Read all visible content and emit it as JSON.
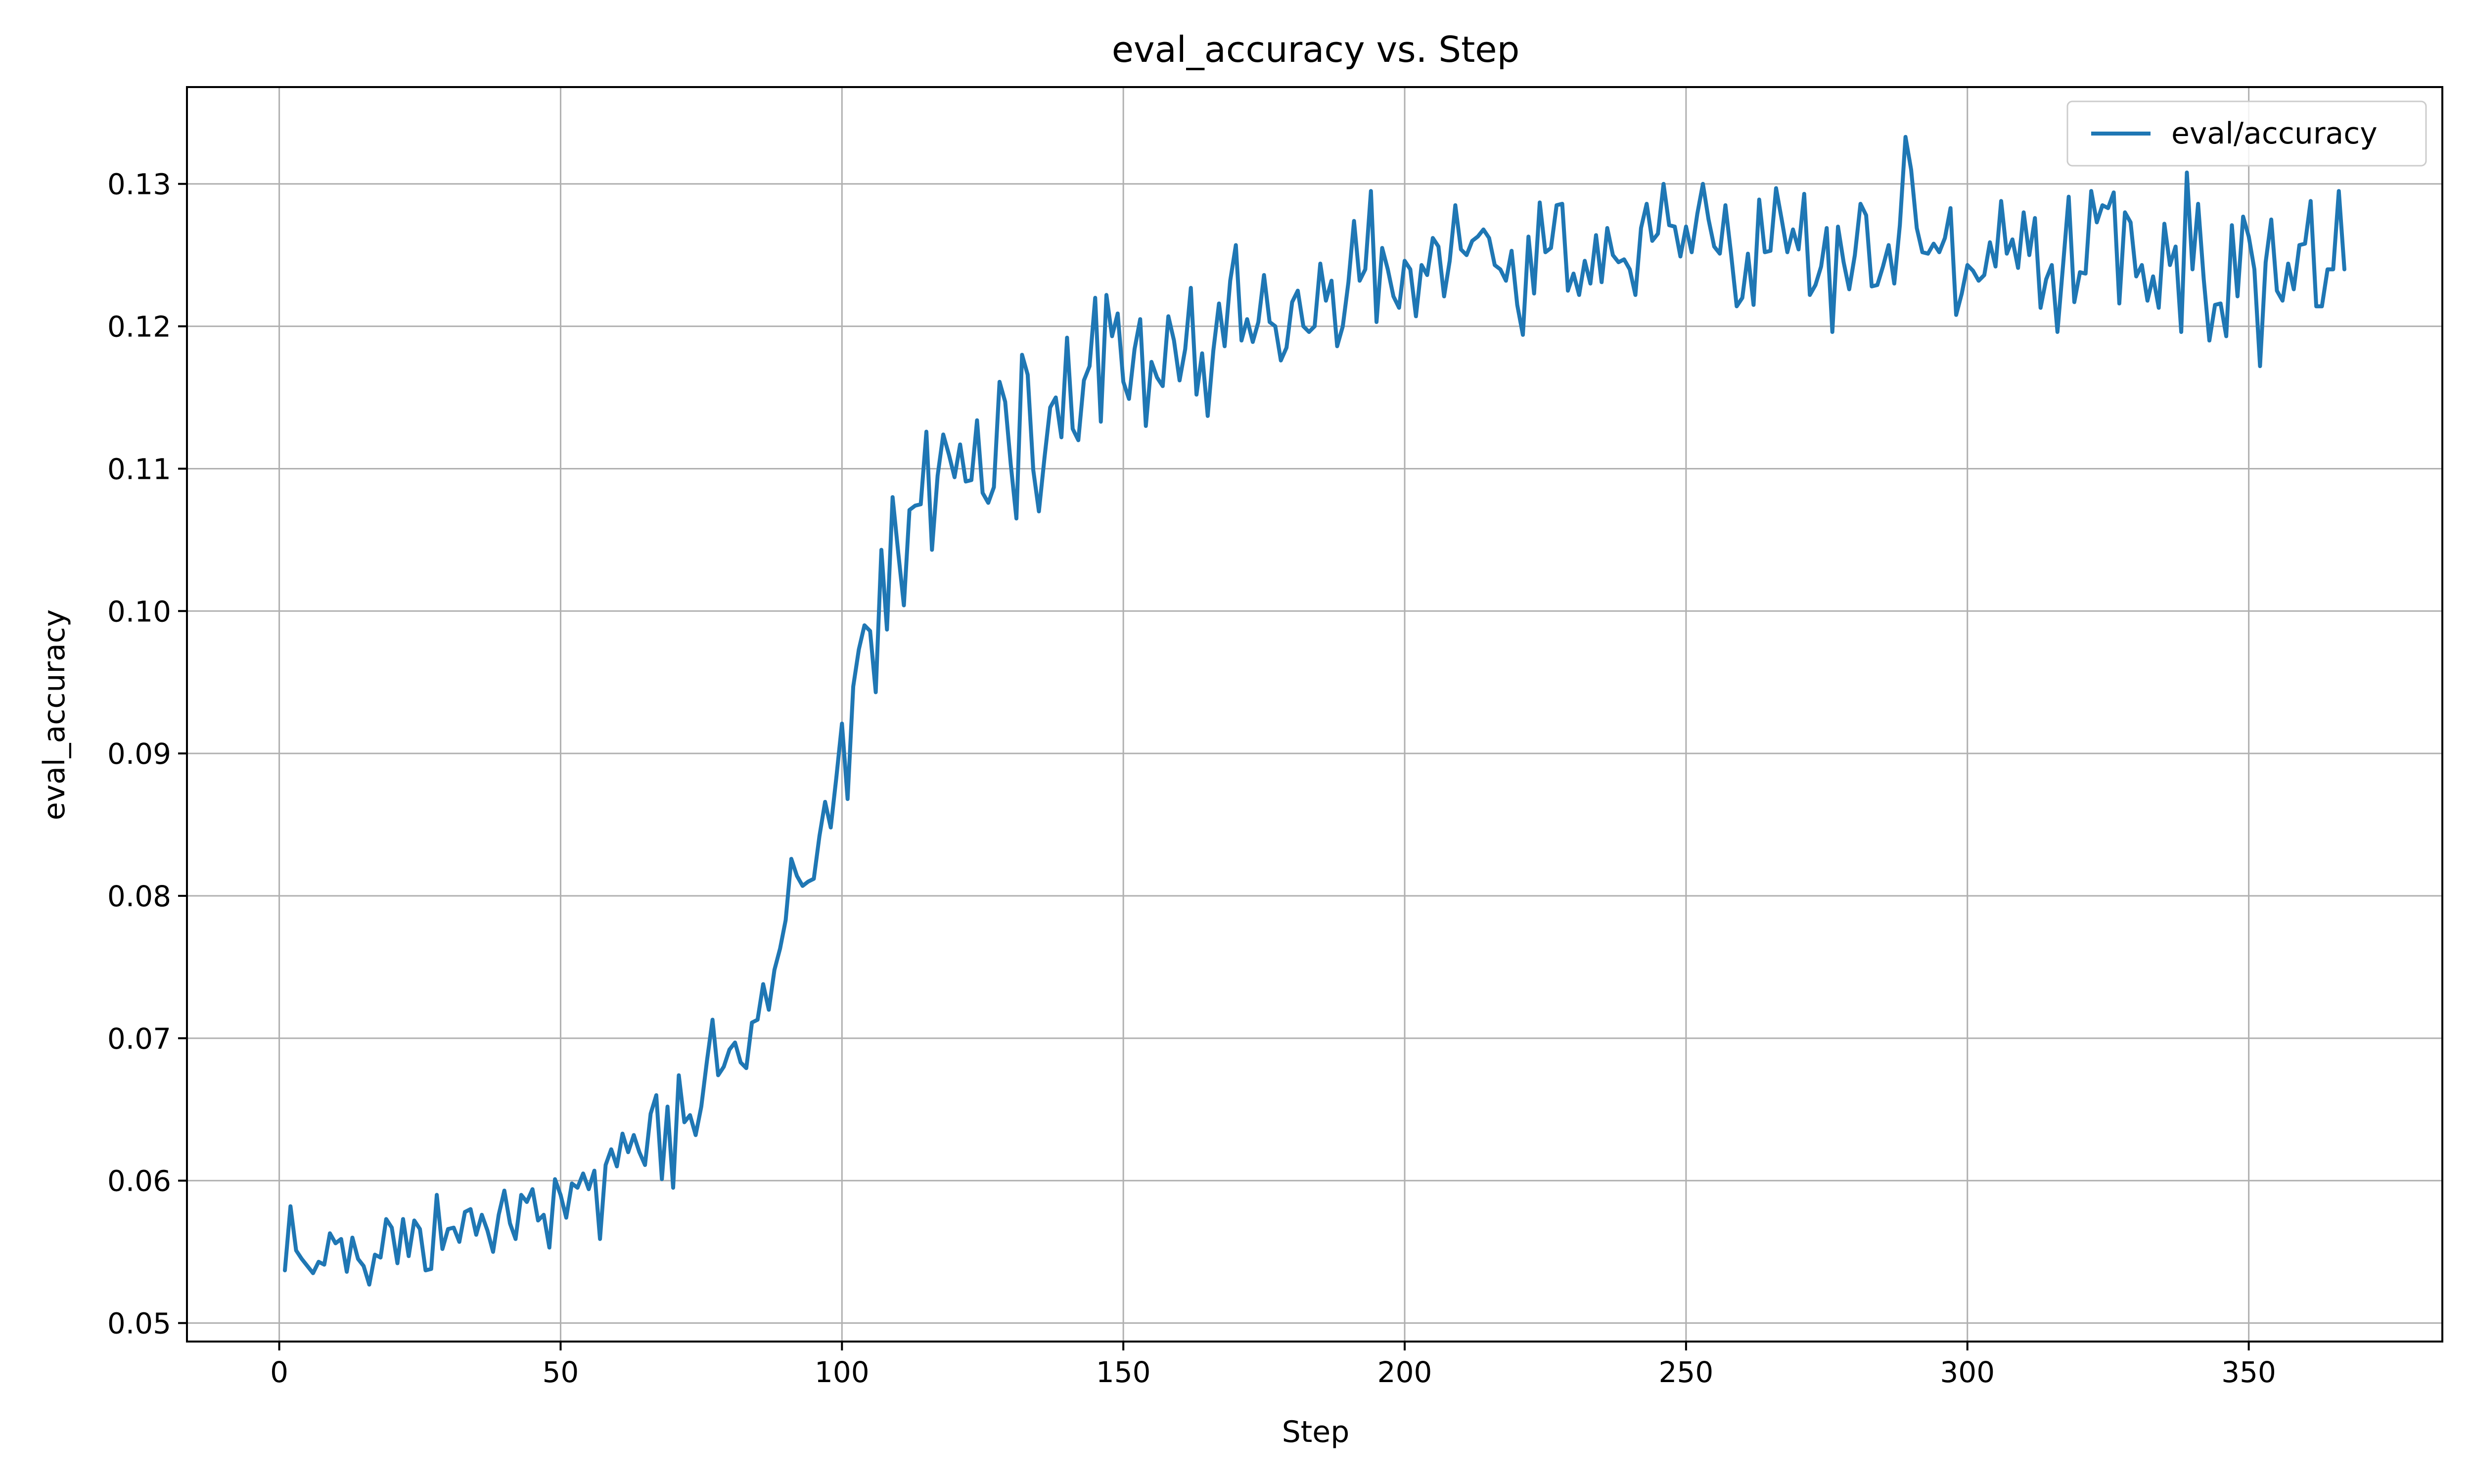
{
  "chart_data": {
    "type": "line",
    "title": "eval_accuracy vs. Step",
    "xlabel": "Step",
    "ylabel": "eval_accuracy",
    "xlim": [
      -16.4,
      384.4
    ],
    "ylim": [
      0.0487,
      0.1368
    ],
    "xticks": [
      0,
      50,
      100,
      150,
      200,
      250,
      300,
      350
    ],
    "yticks": [
      0.05,
      0.06,
      0.07,
      0.08,
      0.09,
      0.1,
      0.11,
      0.12,
      0.13
    ],
    "xtick_labels": [
      "0",
      "50",
      "100",
      "150",
      "200",
      "250",
      "300",
      "350"
    ],
    "ytick_labels": [
      "0.05",
      "0.06",
      "0.07",
      "0.08",
      "0.09",
      "0.10",
      "0.11",
      "0.12",
      "0.13"
    ],
    "grid": true,
    "legend_position": "top-right",
    "series": [
      {
        "name": "eval/accuracy",
        "color": "#1f77b4",
        "x_start": 1,
        "x_step": 1,
        "values": [
          0.0537,
          0.0582,
          0.0551,
          0.0545,
          0.054,
          0.0535,
          0.0543,
          0.0541,
          0.0563,
          0.0556,
          0.0559,
          0.0536,
          0.056,
          0.0545,
          0.054,
          0.0527,
          0.0548,
          0.0546,
          0.0573,
          0.0567,
          0.0542,
          0.0573,
          0.0547,
          0.0572,
          0.0566,
          0.0537,
          0.0538,
          0.059,
          0.0552,
          0.0566,
          0.0567,
          0.0557,
          0.0578,
          0.058,
          0.0562,
          0.0576,
          0.0565,
          0.055,
          0.0576,
          0.0593,
          0.057,
          0.0559,
          0.059,
          0.0585,
          0.0594,
          0.0572,
          0.0576,
          0.0553,
          0.0601,
          0.059,
          0.0574,
          0.0598,
          0.0595,
          0.0605,
          0.0594,
          0.0607,
          0.0559,
          0.0611,
          0.0622,
          0.061,
          0.0633,
          0.062,
          0.0632,
          0.062,
          0.0611,
          0.0647,
          0.066,
          0.0601,
          0.0652,
          0.0595,
          0.0674,
          0.0641,
          0.0646,
          0.0632,
          0.0652,
          0.0684,
          0.0713,
          0.0674,
          0.068,
          0.0692,
          0.0697,
          0.0683,
          0.0679,
          0.0711,
          0.0713,
          0.0738,
          0.072,
          0.0748,
          0.0763,
          0.0783,
          0.0826,
          0.0814,
          0.0807,
          0.081,
          0.0812,
          0.0842,
          0.0866,
          0.0848,
          0.0883,
          0.0921,
          0.0868,
          0.0947,
          0.0973,
          0.099,
          0.0986,
          0.0943,
          0.1043,
          0.0987,
          0.108,
          0.1041,
          0.1004,
          0.1071,
          0.1074,
          0.1075,
          0.1126,
          0.1043,
          0.1095,
          0.1124,
          0.111,
          0.1094,
          0.1117,
          0.1091,
          0.1092,
          0.1134,
          0.1083,
          0.1076,
          0.1087,
          0.1161,
          0.1147,
          0.1103,
          0.1065,
          0.118,
          0.1166,
          0.1099,
          0.107,
          0.1108,
          0.1143,
          0.115,
          0.1122,
          0.1192,
          0.1128,
          0.112,
          0.1162,
          0.1172,
          0.122,
          0.1133,
          0.1222,
          0.1193,
          0.1209,
          0.1161,
          0.1149,
          0.1184,
          0.1205,
          0.113,
          0.1175,
          0.1164,
          0.1158,
          0.1207,
          0.119,
          0.1162,
          0.1184,
          0.1227,
          0.1152,
          0.1181,
          0.1137,
          0.1183,
          0.1216,
          0.1186,
          0.1232,
          0.1257,
          0.119,
          0.1205,
          0.1189,
          0.1203,
          0.1236,
          0.1203,
          0.12,
          0.1176,
          0.1185,
          0.1217,
          0.1225,
          0.12,
          0.1196,
          0.12,
          0.1244,
          0.1218,
          0.1232,
          0.1186,
          0.12,
          0.1231,
          0.1274,
          0.1232,
          0.124,
          0.1295,
          0.1203,
          0.1255,
          0.124,
          0.1221,
          0.1213,
          0.1246,
          0.124,
          0.1207,
          0.1243,
          0.1236,
          0.1262,
          0.1256,
          0.1221,
          0.1246,
          0.1285,
          0.1254,
          0.125,
          0.126,
          0.1263,
          0.1268,
          0.1262,
          0.1243,
          0.124,
          0.1232,
          0.1253,
          0.1215,
          0.1194,
          0.1263,
          0.1223,
          0.1287,
          0.1252,
          0.1255,
          0.1285,
          0.1286,
          0.1225,
          0.1237,
          0.1222,
          0.1246,
          0.123,
          0.1264,
          0.1231,
          0.1269,
          0.125,
          0.1245,
          0.1247,
          0.124,
          0.1222,
          0.1269,
          0.1286,
          0.126,
          0.1265,
          0.13,
          0.1271,
          0.127,
          0.1249,
          0.127,
          0.1252,
          0.1279,
          0.13,
          0.1275,
          0.1256,
          0.1251,
          0.1285,
          0.1251,
          0.1214,
          0.122,
          0.1251,
          0.1215,
          0.1289,
          0.1252,
          0.1253,
          0.1297,
          0.1275,
          0.1252,
          0.1268,
          0.1254,
          0.1293,
          0.1222,
          0.1229,
          0.1242,
          0.1269,
          0.1196,
          0.127,
          0.1245,
          0.1226,
          0.125,
          0.1286,
          0.1278,
          0.1228,
          0.1229,
          0.1242,
          0.1257,
          0.123,
          0.1271,
          0.1333,
          0.131,
          0.1269,
          0.1252,
          0.1251,
          0.1258,
          0.1252,
          0.1262,
          0.1283,
          0.1208,
          0.1223,
          0.1243,
          0.1239,
          0.1232,
          0.1236,
          0.1259,
          0.1242,
          0.1288,
          0.1251,
          0.1261,
          0.1241,
          0.128,
          0.125,
          0.1276,
          0.1213,
          0.1233,
          0.1243,
          0.1196,
          0.1243,
          0.1291,
          0.1217,
          0.1238,
          0.1237,
          0.1295,
          0.1273,
          0.1285,
          0.1283,
          0.1294,
          0.1216,
          0.128,
          0.1273,
          0.1235,
          0.1243,
          0.1218,
          0.1235,
          0.1213,
          0.1272,
          0.1243,
          0.1256,
          0.1196,
          0.1308,
          0.124,
          0.1286,
          0.1233,
          0.119,
          0.1215,
          0.1216,
          0.1193,
          0.1271,
          0.1221,
          0.1277,
          0.1263,
          0.124,
          0.1172,
          0.1245,
          0.1275,
          0.1225,
          0.1218,
          0.1244,
          0.1226,
          0.1257,
          0.1258,
          0.1288,
          0.1214,
          0.1214,
          0.124,
          0.124,
          0.1295,
          0.124
        ]
      }
    ]
  }
}
